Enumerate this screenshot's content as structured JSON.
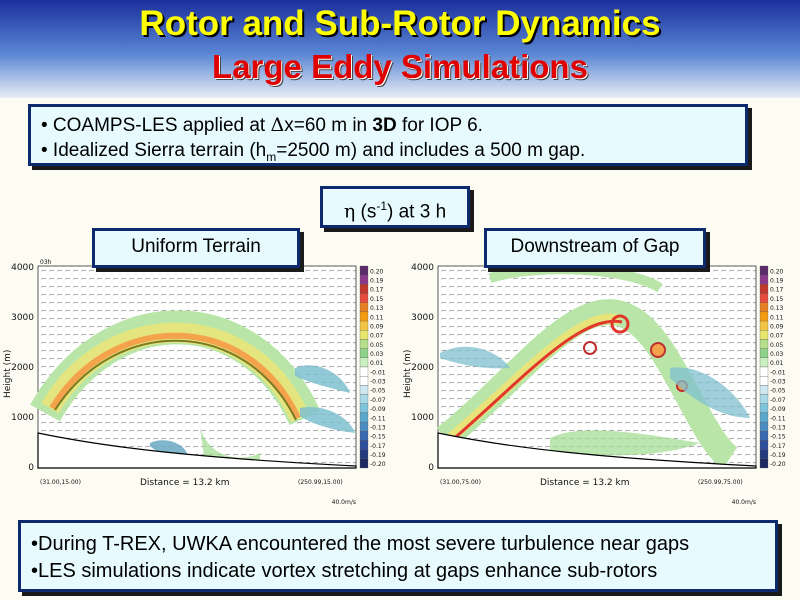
{
  "slide": {
    "title_line1": "Rotor and Sub-Rotor Dynamics",
    "title_line2": "Large Eddy Simulations"
  },
  "intro": {
    "line1_prefix": "• COAMPS-LES applied at ",
    "line1_delta": "Δ",
    "line1_mid": "x=60 m in ",
    "line1_bold": "3D",
    "line1_suffix": " for IOP 6.",
    "line2_prefix": "• Idealized Sierra terrain (h",
    "line2_sub": "m",
    "line2_suffix": "=2500 m) and includes a 500 m gap."
  },
  "eta_label": {
    "symbol": "η",
    "units_pre": " (s",
    "units_sup": "-1",
    "units_post": ") at 3 h"
  },
  "panels": [
    {
      "label": "Uniform Terrain",
      "time_label": "03h",
      "y_axis_label": "Height (m)",
      "y_ticks": [
        "4000",
        "3000",
        "2000",
        "1000",
        "0"
      ],
      "x_label": "Distance = 13.2 km",
      "left_coord": "(31.00,15.00)",
      "right_coord": "(250.99,15.00)",
      "scale_vector": "40.0m/s",
      "colorbar_ticks": [
        "0.20",
        "0.19",
        "0.17",
        "0.15",
        "0.13",
        "0.11",
        "0.09",
        "0.07",
        "0.05",
        "0.03",
        "0.01",
        "-0.01",
        "-0.03",
        "-0.05",
        "-0.07",
        "-0.09",
        "-0.11",
        "-0.13",
        "-0.15",
        "-0.17",
        "-0.19",
        "-0.20"
      ]
    },
    {
      "label": "Downstream of Gap",
      "time_label": "",
      "y_axis_label": "Height (m)",
      "y_ticks": [
        "4000",
        "3000",
        "2000",
        "1000",
        "0"
      ],
      "x_label": "Distance = 13.2 km",
      "left_coord": "(31.00,75.00)",
      "right_coord": "(250.99,75.00)",
      "scale_vector": "40.0m/s",
      "colorbar_ticks": [
        "0.20",
        "0.19",
        "0.17",
        "0.15",
        "0.13",
        "0.11",
        "0.09",
        "0.07",
        "0.05",
        "0.03",
        "0.01",
        "-0.01",
        "-0.03",
        "-0.05",
        "-0.07",
        "-0.09",
        "-0.11",
        "-0.13",
        "-0.15",
        "-0.17",
        "-0.19",
        "-0.20"
      ]
    }
  ],
  "bottom": {
    "line1": "•During T-REX, UWKA encountered the most severe turbulence near gaps",
    "line2": "•LES simulations indicate vortex stretching at gaps enhance sub-rotors"
  },
  "colors": {
    "title_yellow": "#ffff00",
    "title_red": "#e00000",
    "box_fill": "#e7fbff",
    "box_border": "#0e2a6e"
  }
}
